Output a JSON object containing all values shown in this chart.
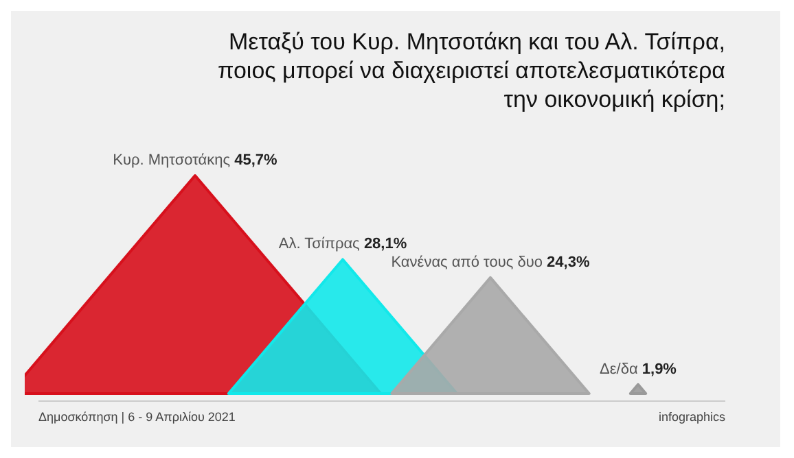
{
  "chart_data": {
    "type": "other",
    "title": "Μεταξύ του Κυρ. Μητσοτάκη και του Αλ. Τσίπρα, ποιος μπορεί να διαχειριστεί αποτελεσματικότερα την οικονομική κρίση;",
    "categories": [
      "Κυρ. Μητσοτάκης",
      "Αλ. Τσίπρας",
      "Κανένας από τους δυο",
      "Δε/δα"
    ],
    "values": [
      45.7,
      28.1,
      24.3,
      1.9
    ],
    "colors": [
      "#d7101c",
      "#12e8ea",
      "#a9a9a9",
      "#9a9a9a"
    ],
    "value_labels": [
      "45,7%",
      "28,1%",
      "24,3%",
      "1,9%"
    ],
    "annotations": [
      "Δημοσκόπηση | 6 - 9 Απριλίου 2021",
      "infographics"
    ]
  }
}
